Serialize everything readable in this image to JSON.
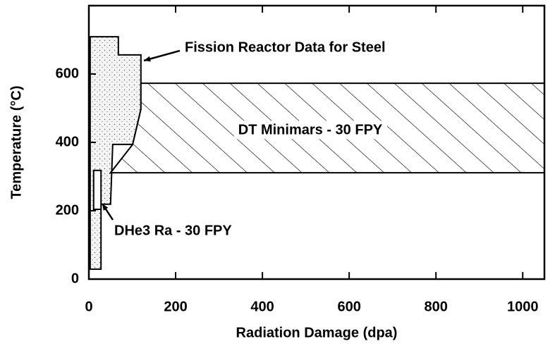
{
  "chart_data": {
    "type": "region",
    "xlabel": "Radiation Damage (dpa)",
    "ylabel": "Temperature (°C)",
    "xlim": [
      0,
      1050
    ],
    "ylim": [
      0,
      800
    ],
    "xticks": [
      0,
      200,
      400,
      600,
      800,
      1000
    ],
    "yticks": [
      0,
      200,
      400,
      600
    ],
    "regions": [
      {
        "name": "Fission Reactor Data for Steel",
        "fill": "stipple",
        "x": [
          3,
          68,
          68,
          120,
          120,
          101,
          55,
          50,
          28,
          28,
          3
        ],
        "y": [
          709,
          709,
          656,
          656,
          497,
          394,
          394,
          219,
          219,
          29,
          29
        ]
      },
      {
        "name": "DT Minimars - 30 FPY",
        "fill": "hatch",
        "x": [
          50,
          101,
          120,
          120,
          1050,
          1050
        ],
        "y": [
          311,
          394,
          497,
          573,
          573,
          311
        ]
      },
      {
        "name": "DHe3 Ra - 30 FPY",
        "fill": "none",
        "x": [
          11,
          28,
          28,
          11
        ],
        "y": [
          204,
          204,
          318,
          318
        ]
      }
    ]
  }
}
